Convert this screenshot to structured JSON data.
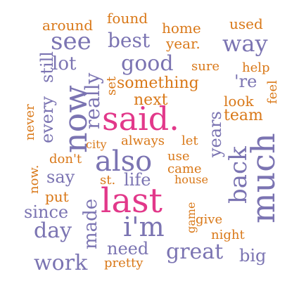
{
  "colors": {
    "background": "#ffffff",
    "orange": "#d97818",
    "purple": "#7b74b2",
    "pink": "#e2388a"
  },
  "words": [
    {
      "text": "said.",
      "color": "pink"
    },
    {
      "text": "last",
      "color": "pink"
    },
    {
      "text": "now",
      "color": "purple"
    },
    {
      "text": "much",
      "color": "purple"
    },
    {
      "text": "also",
      "color": "purple"
    },
    {
      "text": "i'm",
      "color": "purple"
    },
    {
      "text": "back",
      "color": "purple"
    },
    {
      "text": "see",
      "color": "purple"
    },
    {
      "text": "way",
      "color": "purple"
    },
    {
      "text": "good",
      "color": "purple"
    },
    {
      "text": "best",
      "color": "purple"
    },
    {
      "text": "really",
      "color": "purple"
    },
    {
      "text": "great",
      "color": "purple"
    },
    {
      "text": "work",
      "color": "purple"
    },
    {
      "text": "day",
      "color": "purple"
    },
    {
      "text": "made",
      "color": "purple"
    },
    {
      "text": "since",
      "color": "purple"
    },
    {
      "text": "say",
      "color": "purple"
    },
    {
      "text": "every",
      "color": "purple"
    },
    {
      "text": "still",
      "color": "purple"
    },
    {
      "text": "lot",
      "color": "purple"
    },
    {
      "text": "years",
      "color": "purple"
    },
    {
      "text": "need",
      "color": "purple"
    },
    {
      "text": "big",
      "color": "purple"
    },
    {
      "text": "life",
      "color": "purple"
    },
    {
      "text": "'re",
      "color": "purple"
    },
    {
      "text": "something",
      "color": "orange"
    },
    {
      "text": "next",
      "color": "orange"
    },
    {
      "text": "team",
      "color": "orange"
    },
    {
      "text": "look",
      "color": "orange"
    },
    {
      "text": "around",
      "color": "orange"
    },
    {
      "text": "found",
      "color": "orange"
    },
    {
      "text": "home",
      "color": "orange"
    },
    {
      "text": "used",
      "color": "orange"
    },
    {
      "text": "year.",
      "color": "orange"
    },
    {
      "text": "sure",
      "color": "orange"
    },
    {
      "text": "help",
      "color": "orange"
    },
    {
      "text": "set",
      "color": "orange"
    },
    {
      "text": "feel",
      "color": "orange"
    },
    {
      "text": "never",
      "color": "orange"
    },
    {
      "text": "city",
      "color": "orange"
    },
    {
      "text": "always",
      "color": "orange"
    },
    {
      "text": "let",
      "color": "orange"
    },
    {
      "text": "don't",
      "color": "orange"
    },
    {
      "text": "use",
      "color": "orange"
    },
    {
      "text": "came",
      "color": "orange"
    },
    {
      "text": "house",
      "color": "orange"
    },
    {
      "text": "now.",
      "color": "orange"
    },
    {
      "text": "st.",
      "color": "orange"
    },
    {
      "text": "put",
      "color": "orange"
    },
    {
      "text": "game",
      "color": "orange"
    },
    {
      "text": "give",
      "color": "orange"
    },
    {
      "text": "night",
      "color": "orange"
    },
    {
      "text": "pretty",
      "color": "orange"
    }
  ]
}
